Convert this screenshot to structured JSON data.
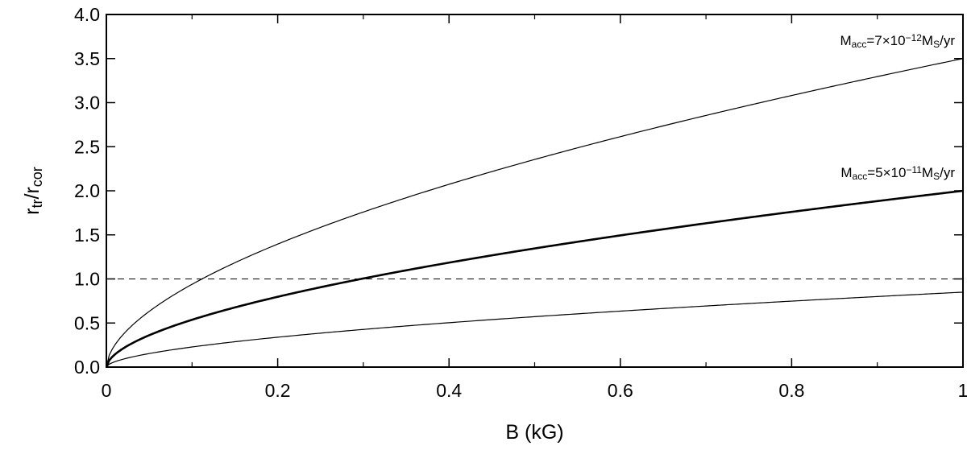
{
  "chart_data": {
    "type": "line",
    "title": "",
    "xlabel": "B (kG)",
    "ylabel": {
      "base_1": "r",
      "sub_1": "tr",
      "sep": "/r",
      "sub_2": "cor"
    },
    "xlim": [
      0,
      1
    ],
    "ylim": [
      0,
      4
    ],
    "x_ticks": [
      {
        "value": 0,
        "label": "0"
      },
      {
        "value": 0.2,
        "label": "0.2"
      },
      {
        "value": 0.4,
        "label": "0.4"
      },
      {
        "value": 0.6,
        "label": "0.6"
      },
      {
        "value": 0.8,
        "label": "0.8"
      },
      {
        "value": 1,
        "label": "1"
      }
    ],
    "x_minor_ticks": [
      0.1,
      0.3,
      0.5,
      0.7,
      0.9
    ],
    "y_ticks": [
      {
        "value": 0.0,
        "label": "0.0"
      },
      {
        "value": 0.5,
        "label": "0.5"
      },
      {
        "value": 1.0,
        "label": "1.0"
      },
      {
        "value": 1.5,
        "label": "1.5"
      },
      {
        "value": 2.0,
        "label": "2.0"
      },
      {
        "value": 2.5,
        "label": "2.5"
      },
      {
        "value": 3.0,
        "label": "3.0"
      },
      {
        "value": 3.5,
        "label": "3.5"
      },
      {
        "value": 4.0,
        "label": "4.0"
      }
    ],
    "grid": false,
    "exponent": 0.5714,
    "series": [
      {
        "amplitude": 3.5,
        "stroke_weight": "thin",
        "color": "#000000"
      },
      {
        "amplitude": 2.0,
        "stroke_weight": "thick",
        "color": "#000000"
      },
      {
        "amplitude": 0.85,
        "stroke_weight": "thin",
        "color": "#000000"
      }
    ],
    "reference_lines": [
      {
        "y": 1.0,
        "style": "dashed",
        "color": "#000000"
      }
    ],
    "annotations": [
      {
        "series_index": 0,
        "m": "M",
        "m_sub": "acc",
        "eq": "=7×10",
        "exp": "−12",
        "unit_m": "M",
        "unit_sub": "S",
        "unit_rest": "/yr"
      },
      {
        "series_index": 1,
        "m": "M",
        "m_sub": "acc",
        "eq": "=5×10",
        "exp": "−11",
        "unit_m": "M",
        "unit_sub": "S",
        "unit_rest": "/yr"
      }
    ]
  }
}
